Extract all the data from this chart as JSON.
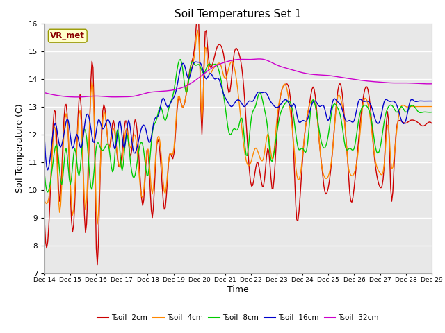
{
  "title": "Soil Temperatures Set 1",
  "xlabel": "Time",
  "ylabel": "Soil Temperature (C)",
  "ylim": [
    7.0,
    16.0
  ],
  "yticks": [
    7.0,
    8.0,
    9.0,
    10.0,
    11.0,
    12.0,
    13.0,
    14.0,
    15.0,
    16.0
  ],
  "xtick_labels": [
    "Dec 14",
    "Dec 15",
    "Dec 16",
    "Dec 17",
    "Dec 18",
    "Dec 19",
    "Dec 20",
    "Dec 21",
    "Dec 22",
    "Dec 23",
    "Dec 24",
    "Dec 25",
    "Dec 26",
    "Dec 27",
    "Dec 28",
    "Dec 29"
  ],
  "colors": {
    "Tsoil -2cm": "#cc0000",
    "Tsoil -4cm": "#ff8800",
    "Tsoil -8cm": "#00cc00",
    "Tsoil -16cm": "#0000cc",
    "Tsoil -32cm": "#cc00cc"
  },
  "annotation_text": "VR_met",
  "annotation_color": "#8b0000",
  "annotation_bg": "#ffffcc",
  "annotation_border": "#999900",
  "plot_bg": "#e8e8e8",
  "grid_color": "#ffffff",
  "fig_bg": "#ffffff",
  "figsize": [
    6.4,
    4.8
  ],
  "dpi": 100
}
